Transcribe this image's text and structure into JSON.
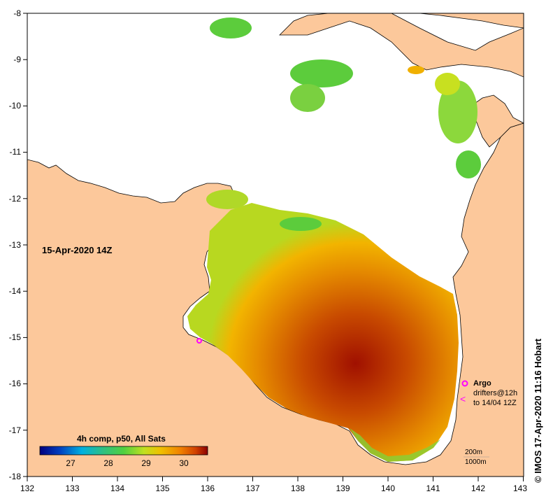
{
  "map": {
    "date_label": "15-Apr-2020 14Z",
    "colorbar_title": "4h comp, p50, All Sats",
    "colorbar_ticks": [
      "27",
      "28",
      "29",
      "30"
    ],
    "credit": "© IMOS 17-Apr-2020 11:16 Hobart",
    "x_ticks": [
      "132",
      "133",
      "134",
      "135",
      "136",
      "137",
      "138",
      "139",
      "140",
      "141",
      "142",
      "143"
    ],
    "y_ticks": [
      "-8",
      "-9",
      "-10",
      "-11",
      "-12",
      "-13",
      "-14",
      "-15",
      "-16",
      "-17",
      "-18"
    ],
    "legend": {
      "argo": "Argo",
      "drifters": "drifters@12h",
      "drifters_range": "to 14/04 12Z",
      "depth_200": "200m",
      "depth_1000": "1000m"
    },
    "colors": {
      "land": "#fcc89b",
      "no_data": "#ffffff",
      "argo_marker": "#ff00ff",
      "sst_low": "#00008b",
      "sst_high": "#8b0000"
    },
    "colorbar_stops": [
      "#00007f",
      "#0040c0",
      "#00b0e0",
      "#30c080",
      "#50d040",
      "#c0e020",
      "#f0c000",
      "#f08000",
      "#d04000",
      "#8b0000"
    ]
  }
}
